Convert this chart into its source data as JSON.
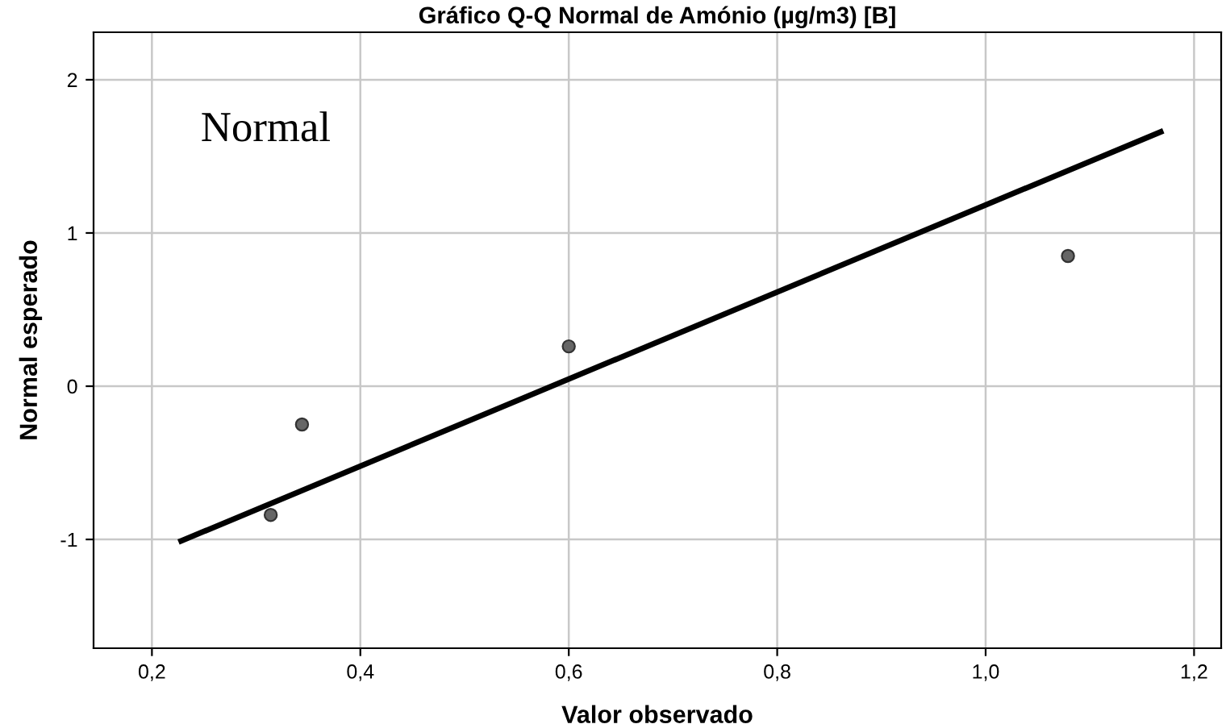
{
  "chart_data": {
    "type": "scatter",
    "title": "Gráfico Q-Q Normal de Amónio (µg/m3) [B]",
    "xlabel": "Valor observado",
    "ylabel": "Normal esperado",
    "annotations": [
      "Normal"
    ],
    "series": [
      {
        "marker": "circle",
        "color": "#666666",
        "x": [
          0.314,
          0.344,
          0.6,
          1.079
        ],
        "values": [
          -0.84,
          -0.25,
          0.26,
          0.85
        ]
      },
      {
        "type": "line",
        "color": "#000000",
        "x": [
          0.228,
          1.168
        ],
        "values": [
          -1.01,
          1.66
        ]
      }
    ],
    "xlim": [
      0.144,
      1.226
    ],
    "ylim": [
      -1.71,
      2.31
    ],
    "xticks": [
      {
        "value": 0.2,
        "label": "0,2"
      },
      {
        "value": 0.4,
        "label": "0,4"
      },
      {
        "value": 0.6,
        "label": "0,6"
      },
      {
        "value": 0.8,
        "label": "0,8"
      },
      {
        "value": 1.0,
        "label": "1,0"
      },
      {
        "value": 1.2,
        "label": "1,2"
      }
    ],
    "yticks": [
      -1,
      0,
      1,
      2
    ],
    "grid": true
  }
}
